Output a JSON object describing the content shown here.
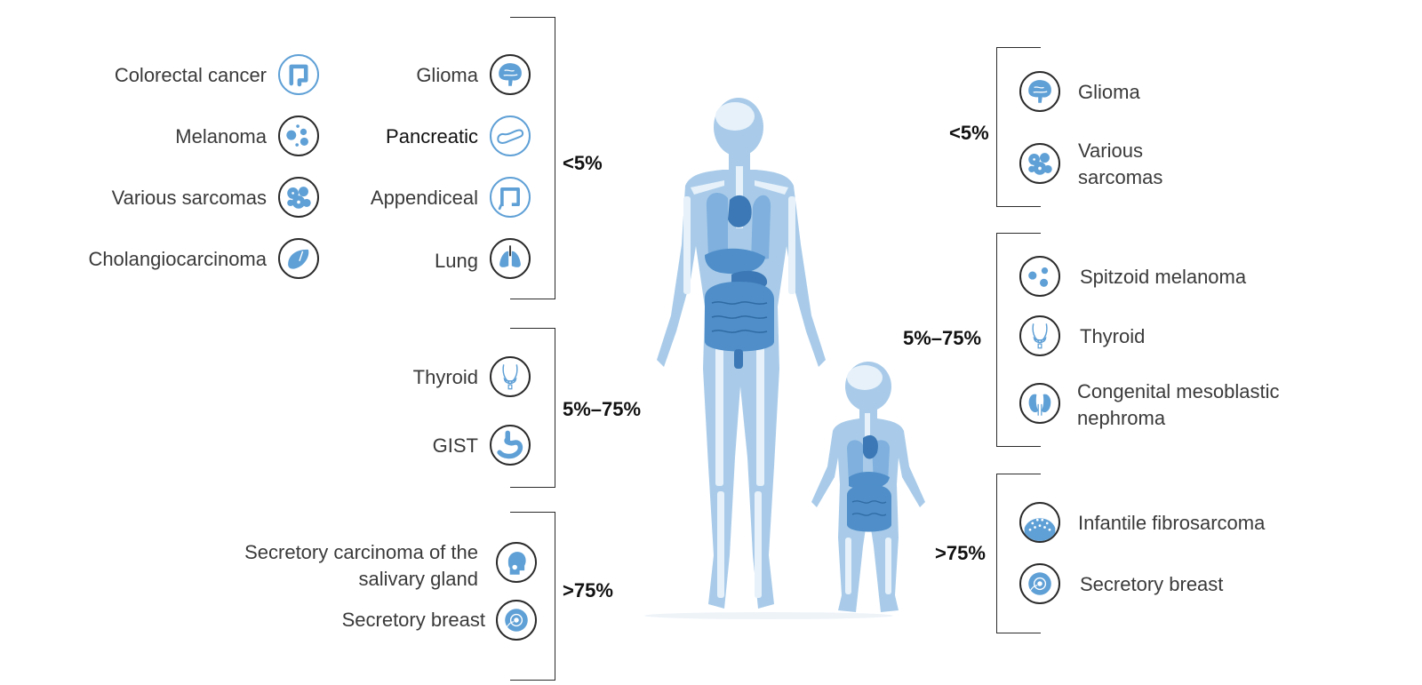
{
  "adult": {
    "groups": [
      {
        "pct": "<5%",
        "col1": [
          "Colorectal cancer",
          "Melanoma",
          "Various sarcomas",
          "Cholangiocarcinoma"
        ],
        "col2": [
          "Glioma",
          "Pancreatic",
          "Appendiceal",
          "Lung"
        ]
      },
      {
        "pct": "5%–75%",
        "col2": [
          "Thyroid",
          "GIST"
        ]
      },
      {
        "pct": ">75%",
        "col2": [
          "Secretory carcinoma of the salivary gland",
          "Secretory breast"
        ]
      }
    ]
  },
  "pediatric": {
    "groups": [
      {
        "pct": "<5%",
        "items": [
          "Glioma",
          "Various sarcomas"
        ]
      },
      {
        "pct": "5%–75%",
        "items": [
          "Spitzoid melanoma",
          "Thyroid",
          "Congenital mesoblastic nephroma"
        ]
      },
      {
        "pct": ">75%",
        "items": [
          "Infantile fibrosarcoma",
          "Secretory breast"
        ]
      }
    ]
  },
  "icons": {
    "colorectal": "colon-icon",
    "melanoma": "spots-icon",
    "sarcoma": "cells-icon",
    "cholangio": "liver-icon",
    "glioma": "brain-icon",
    "pancreatic": "pancreas-icon",
    "appendiceal": "appendix-icon",
    "lung": "lungs-icon",
    "thyroid": "thyroid-icon",
    "gist": "stomach-icon",
    "salivary": "head-icon",
    "breast": "breast-icon",
    "kidney": "kidneys-icon",
    "fibrosarcoma": "fibrous-tissue-icon"
  },
  "colors": {
    "body": "#a9cbe9",
    "bone": "#e6f1fa",
    "organ": "#4f8ec9",
    "organ_dark": "#3b78b5",
    "outline": "#2b2b2b",
    "icon_light": "#5fa0d6"
  }
}
